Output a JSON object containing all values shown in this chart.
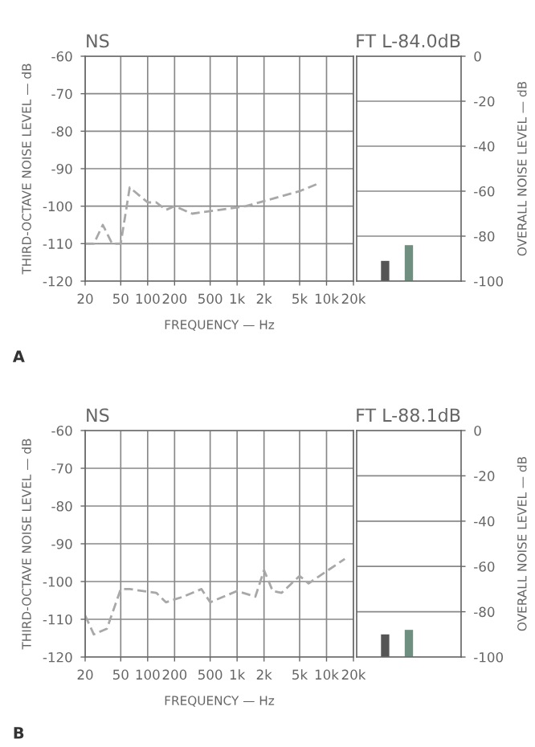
{
  "chart_data": [
    {
      "type": "line",
      "title": "NS",
      "xlabel": "FREQUENCY — Hz",
      "ylabel": "THIRD-OCTAVE NOISE LEVEL — dB",
      "annotations": [
        "A"
      ],
      "log": "x",
      "grid": true,
      "line_style": "dashed",
      "x": [
        20,
        25,
        31.5,
        40,
        50,
        63,
        100,
        125,
        160,
        200,
        315,
        630,
        1250,
        2500,
        5000,
        8000
      ],
      "series": [
        {
          "color": "#a8a8a8",
          "values": [
            -110,
            -110,
            -105,
            -110,
            -110,
            -95,
            -99,
            -99,
            -101,
            -100,
            -102,
            -101,
            -100,
            -98,
            -96,
            -94
          ]
        }
      ],
      "xlim": [
        20,
        20000
      ],
      "xticks": [
        20,
        50,
        100,
        200,
        500,
        {
          "value": 1000,
          "label": "1k"
        },
        {
          "value": 2000,
          "label": "2k"
        },
        {
          "value": 5000,
          "label": "5k"
        },
        {
          "value": 10000,
          "label": "10k"
        },
        {
          "value": 20000,
          "label": "20k"
        }
      ],
      "ylim": [
        -120,
        -60
      ],
      "yticks": [
        -60,
        -70,
        -80,
        -90,
        -100,
        -110,
        -120
      ]
    },
    {
      "type": "bar",
      "title": "FT L-84.0dB",
      "ylabel": "OVERALL NOISE LEVEL — dB",
      "categories": [
        null,
        null
      ],
      "base": [
        -100,
        -100
      ],
      "values": [
        9,
        16
      ],
      "colors": [
        "#555555",
        "#6f8f80"
      ],
      "grid": "y",
      "ylim": [
        -100,
        0
      ],
      "yticks": [
        0,
        -20,
        -40,
        -60,
        -80,
        -100
      ]
    },
    {
      "type": "line",
      "title": "NS",
      "xlabel": "FREQUENCY — Hz",
      "ylabel": "THIRD-OCTAVE NOISE LEVEL — dB",
      "annotations": [
        "B"
      ],
      "log": "x",
      "grid": true,
      "line_style": "dashed",
      "x": [
        20,
        25,
        35,
        50,
        63,
        125,
        160,
        250,
        400,
        500,
        1000,
        1600,
        2000,
        2500,
        3150,
        5000,
        6300,
        16000
      ],
      "series": [
        {
          "color": "#a8a8a8",
          "values": [
            -109,
            -114,
            -112.5,
            -102,
            -102,
            -103,
            -105.5,
            -104,
            -102,
            -105.5,
            -102.5,
            -104,
            -97,
            -102.5,
            -103,
            -98.5,
            -100.5,
            -94
          ]
        }
      ],
      "xlim": [
        20,
        20000
      ],
      "xticks": [
        20,
        50,
        100,
        200,
        500,
        {
          "value": 1000,
          "label": "1k"
        },
        {
          "value": 2000,
          "label": "2k"
        },
        {
          "value": 5000,
          "label": "5k"
        },
        {
          "value": 10000,
          "label": "10k"
        },
        {
          "value": 20000,
          "label": "20k"
        }
      ],
      "ylim": [
        -120,
        -60
      ],
      "yticks": [
        -60,
        -70,
        -80,
        -90,
        -100,
        -110,
        -120
      ]
    },
    {
      "type": "bar",
      "title": "FT L-88.1dB",
      "ylabel": "OVERALL NOISE LEVEL — dB",
      "categories": [
        null,
        null
      ],
      "base": [
        -100,
        -100
      ],
      "values": [
        10,
        12
      ],
      "colors": [
        "#555555",
        "#6f8f80"
      ],
      "grid": "y",
      "ylim": [
        -100,
        0
      ],
      "yticks": [
        0,
        -20,
        -40,
        -60,
        -80,
        -100
      ]
    }
  ]
}
